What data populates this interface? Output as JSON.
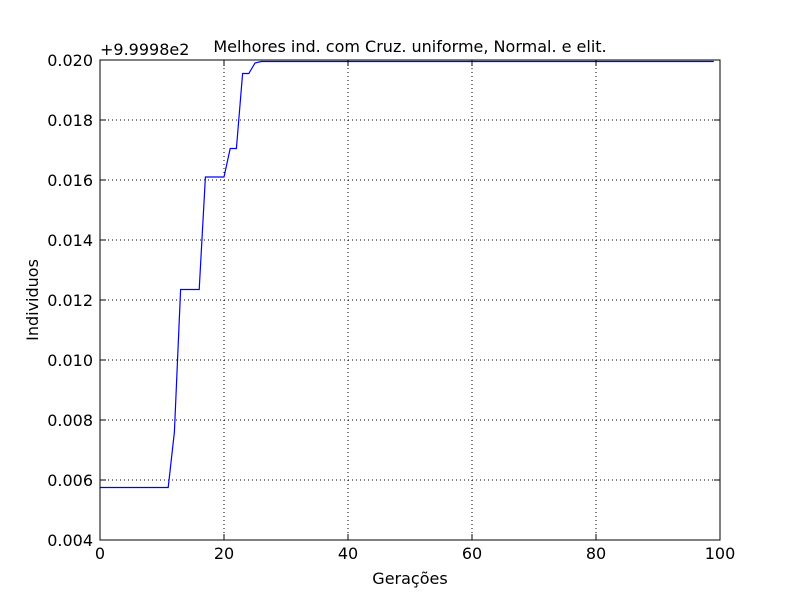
{
  "chart_data": {
    "type": "line",
    "title": "Melhores ind. com Cruz. uniforme, Normal. e elit.",
    "xlabel": "Gerações",
    "ylabel": "Individuos",
    "offset_text": "+9.9998e2",
    "xlim": [
      0,
      100
    ],
    "ylim": [
      0.004,
      0.02
    ],
    "x_ticks": [
      0,
      20,
      40,
      60,
      80,
      100
    ],
    "x_tick_labels": [
      "0",
      "20",
      "40",
      "60",
      "80",
      "100"
    ],
    "y_ticks": [
      0.004,
      0.006,
      0.008,
      0.01,
      0.012,
      0.014,
      0.016,
      0.018,
      0.02
    ],
    "y_tick_labels": [
      "0.004",
      "0.006",
      "0.008",
      "0.010",
      "0.012",
      "0.014",
      "0.016",
      "0.018",
      "0.020"
    ],
    "grid": true,
    "line_color": "#0000ff",
    "series": [
      {
        "x": [
          0,
          11,
          12,
          13,
          16,
          17,
          20,
          21,
          22,
          23,
          24,
          25,
          26,
          99
        ],
        "y": [
          0.00575,
          0.00575,
          0.0076,
          0.01235,
          0.01235,
          0.0161,
          0.0161,
          0.01705,
          0.01705,
          0.01955,
          0.01955,
          0.0199,
          0.01995,
          0.01995
        ]
      }
    ]
  }
}
